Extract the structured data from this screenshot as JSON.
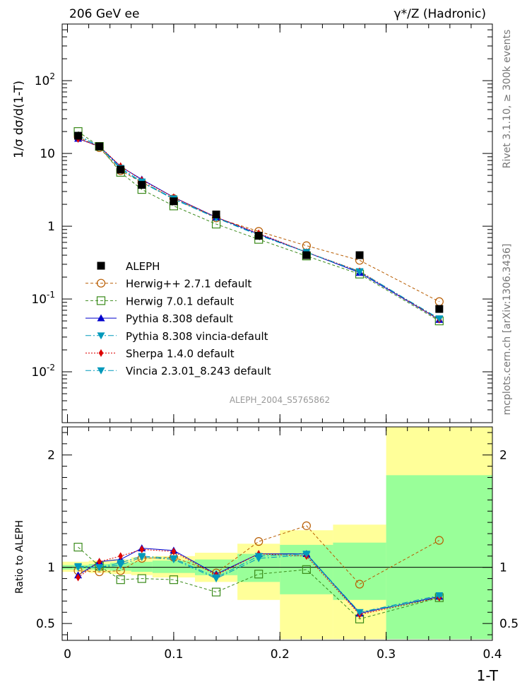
{
  "header": {
    "left": "206 GeV ee",
    "right": "γ*/Z (Hadronic)"
  },
  "side_text": {
    "version": "Rivet 3.1.10, ≥ 300k events",
    "source": "mcplots.cern.ch [arXiv:1306.3436]"
  },
  "watermark": "ALEPH_2004_S5765862",
  "colors": {
    "data": "#000000",
    "herwigpp": "#b85c00",
    "herwig7": "#3a8a1a",
    "pythia": "#0000cc",
    "pythia_vincia": "#0099bb",
    "sherpa": "#dd0000",
    "vincia": "#0099bb",
    "band_outer": "#ffff99",
    "band_inner": "#99ff99"
  },
  "chart_data": [
    {
      "type": "line",
      "ylabel": "1/σ  dσ/d(1-T)",
      "yscale": "log",
      "ylim": [
        0.002,
        600
      ],
      "xlim": [
        -0.005,
        0.4
      ],
      "yticks": [
        {
          "value": 0.01,
          "base": "10",
          "exp": "-2"
        },
        {
          "value": 0.1,
          "base": "10",
          "exp": "-1"
        },
        {
          "value": 1,
          "base": "1",
          "exp": ""
        },
        {
          "value": 10,
          "base": "10",
          "exp": ""
        },
        {
          "value": 100,
          "base": "10",
          "exp": "2"
        }
      ],
      "legend_position": "lower-left",
      "data": {
        "name": "ALEPH",
        "x": [
          0.01,
          0.03,
          0.05,
          0.07,
          0.1,
          0.14,
          0.18,
          0.225,
          0.275,
          0.35
        ],
        "y": [
          17.5,
          12.5,
          6.0,
          3.7,
          2.2,
          1.45,
          0.74,
          0.4,
          0.4,
          0.073
        ]
      },
      "series": [
        {
          "name": "Herwig++ 2.7.1 default",
          "key": "herwigpp",
          "marker": "circle-open",
          "dash": "4,3",
          "y": [
            17.0,
            12.0,
            5.8,
            4.0,
            2.4,
            1.3,
            0.85,
            0.54,
            0.34,
            0.092
          ]
        },
        {
          "name": "Herwig 7.0.1 default",
          "key": "herwig7",
          "marker": "square-open",
          "dash": "4,3",
          "y": [
            20.0,
            12.5,
            5.5,
            3.2,
            1.9,
            1.07,
            0.66,
            0.39,
            0.22,
            0.05
          ]
        },
        {
          "name": "Pythia 8.308 default",
          "key": "pythia",
          "marker": "triangle-up",
          "dash": "",
          "y": [
            16.0,
            12.5,
            6.6,
            4.4,
            2.5,
            1.33,
            0.78,
            0.44,
            0.23,
            0.052
          ]
        },
        {
          "name": "Pythia 8.308 vincia-default",
          "key": "pythia_vincia",
          "marker": "triangle-down",
          "dash": "8,3,2,3",
          "y": [
            17.5,
            12.5,
            6.1,
            4.0,
            2.35,
            1.3,
            0.75,
            0.44,
            0.24,
            0.053
          ]
        },
        {
          "name": "Sherpa 1.4.0 default",
          "key": "sherpa",
          "marker": "diamond",
          "dash": "2,2",
          "y": [
            15.8,
            12.6,
            6.7,
            4.3,
            2.5,
            1.33,
            0.8,
            0.44,
            0.24,
            0.052
          ]
        },
        {
          "name": "Vincia 2.3.01_8.243 default",
          "key": "vincia",
          "marker": "triangle-down",
          "dash": "8,3,2,3",
          "y": [
            17.8,
            12.5,
            6.3,
            4.1,
            2.4,
            1.31,
            0.76,
            0.44,
            0.235,
            0.054
          ]
        }
      ]
    },
    {
      "type": "line",
      "xlabel": "1-T",
      "ylabel": "Ratio to ALEPH",
      "ylim": [
        0.35,
        2.25
      ],
      "xlim": [
        -0.005,
        0.4
      ],
      "xticks": [
        0,
        0.1,
        0.2,
        0.3,
        0.4
      ],
      "xtick_labels": [
        "0",
        "0.1",
        "0.2",
        "0.3",
        "0.4"
      ],
      "yticks": [
        0.5,
        1,
        2
      ],
      "ytick_labels": [
        "0.5",
        "1",
        "2"
      ],
      "reference_line": 1,
      "uncertainty_bands": [
        {
          "x0": -0.005,
          "x1": 0.02,
          "outer": [
            0.96,
            1.05
          ],
          "inner": [
            0.98,
            1.02
          ]
        },
        {
          "x0": 0.02,
          "x1": 0.04,
          "outer": [
            0.95,
            1.06
          ],
          "inner": [
            0.98,
            1.03
          ]
        },
        {
          "x0": 0.04,
          "x1": 0.06,
          "outer": [
            0.94,
            1.07
          ],
          "inner": [
            0.97,
            1.04
          ]
        },
        {
          "x0": 0.06,
          "x1": 0.08,
          "outer": [
            0.93,
            1.09
          ],
          "inner": [
            0.96,
            1.05
          ]
        },
        {
          "x0": 0.08,
          "x1": 0.12,
          "outer": [
            0.91,
            1.1
          ],
          "inner": [
            0.95,
            1.06
          ]
        },
        {
          "x0": 0.12,
          "x1": 0.16,
          "outer": [
            0.87,
            1.13
          ],
          "inner": [
            0.93,
            1.07
          ]
        },
        {
          "x0": 0.16,
          "x1": 0.2,
          "outer": [
            0.71,
            1.21
          ],
          "inner": [
            0.87,
            1.12
          ]
        },
        {
          "x0": 0.2,
          "x1": 0.25,
          "outer": [
            0.36,
            1.33
          ],
          "inner": [
            0.76,
            1.2
          ]
        },
        {
          "x0": 0.25,
          "x1": 0.3,
          "outer": [
            0.36,
            1.38
          ],
          "inner": [
            0.71,
            1.22
          ]
        },
        {
          "x0": 0.3,
          "x1": 0.4,
          "outer": [
            0.36,
            2.25
          ],
          "inner": [
            0.36,
            1.82
          ]
        }
      ],
      "x": [
        0.01,
        0.03,
        0.05,
        0.07,
        0.1,
        0.14,
        0.18,
        0.225,
        0.275,
        0.35
      ],
      "series": [
        {
          "name": "Herwig++ 2.7.1 default",
          "key": "herwigpp",
          "marker": "circle-open",
          "dash": "4,3",
          "y": [
            0.97,
            0.96,
            0.97,
            1.08,
            1.09,
            0.95,
            1.23,
            1.37,
            0.85,
            1.24
          ]
        },
        {
          "name": "Herwig 7.0.1 default",
          "key": "herwig7",
          "marker": "square-open",
          "dash": "4,3",
          "y": [
            1.18,
            1.01,
            0.89,
            0.9,
            0.89,
            0.78,
            0.94,
            0.98,
            0.54,
            0.73
          ]
        },
        {
          "name": "Pythia 8.308 default",
          "key": "pythia",
          "marker": "triangle-up",
          "dash": "",
          "y": [
            0.93,
            1.05,
            1.07,
            1.17,
            1.15,
            0.94,
            1.12,
            1.12,
            0.59,
            0.74
          ]
        },
        {
          "name": "Pythia 8.308 vincia-default",
          "key": "pythia_vincia",
          "marker": "triangle-down",
          "dash": "8,3,2,3",
          "y": [
            1.01,
            1.0,
            1.02,
            1.09,
            1.07,
            0.9,
            1.08,
            1.11,
            0.6,
            0.73
          ]
        },
        {
          "name": "Sherpa 1.4.0 default",
          "key": "sherpa",
          "marker": "diamond",
          "dash": "2,2",
          "y": [
            0.91,
            1.05,
            1.1,
            1.16,
            1.14,
            0.93,
            1.12,
            1.1,
            0.58,
            0.73
          ]
        },
        {
          "name": "Vincia 2.3.01_8.243 default",
          "key": "vincia",
          "marker": "triangle-down",
          "dash": "8,3,2,3",
          "y": [
            1.0,
            1.0,
            1.04,
            1.1,
            1.08,
            0.91,
            1.1,
            1.12,
            0.6,
            0.75
          ]
        }
      ]
    }
  ]
}
